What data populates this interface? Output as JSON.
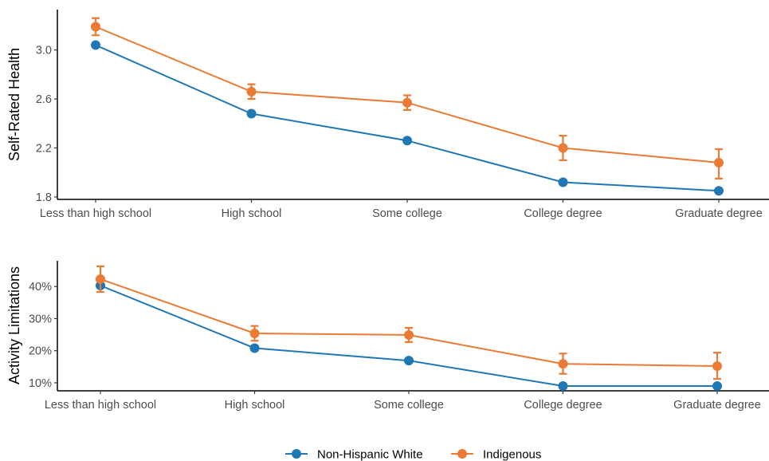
{
  "colors": {
    "non_hispanic_white": "#1f77b4",
    "indigenous": "#ea7a34",
    "axis": "#000000",
    "text": "#4d4d4d"
  },
  "legend": {
    "items": [
      {
        "label": "Non-Hispanic White",
        "color": "#1f77b4"
      },
      {
        "label": "Indigenous",
        "color": "#ea7a34"
      }
    ],
    "placement": "bottom"
  },
  "chart_data": [
    {
      "type": "line",
      "ylabel": "Self-Rated Health",
      "xlabel": "",
      "categories": [
        "Less than high school",
        "High school",
        "Some college",
        "College degree",
        "Graduate degree"
      ],
      "ylim": [
        1.78,
        3.33
      ],
      "yticks": [
        1.8,
        2.2,
        2.6,
        3.0
      ],
      "ytick_labels": [
        "1.8",
        "2.2",
        "2.6",
        "3.0"
      ],
      "grid": false,
      "series": [
        {
          "name": "Non-Hispanic White",
          "color": "#1f77b4",
          "values": [
            3.04,
            2.48,
            2.26,
            1.92,
            1.85
          ]
        },
        {
          "name": "Indigenous",
          "color": "#ea7a34",
          "values": [
            3.19,
            2.66,
            2.57,
            2.2,
            2.08
          ],
          "error_low": [
            3.12,
            2.6,
            2.51,
            2.1,
            1.95
          ],
          "error_high": [
            3.26,
            2.72,
            2.63,
            2.3,
            2.19
          ]
        }
      ]
    },
    {
      "type": "line",
      "ylabel": "Activity Limitations",
      "xlabel": "",
      "categories": [
        "Less than high school",
        "High school",
        "Some college",
        "College degree",
        "Graduate degree"
      ],
      "ylim": [
        7.5,
        48
      ],
      "yticks": [
        10,
        20,
        30,
        40
      ],
      "ytick_labels": [
        "10%",
        "20%",
        "30%",
        "40%"
      ],
      "grid": false,
      "series": [
        {
          "name": "Non-Hispanic White",
          "color": "#1f77b4",
          "values": [
            40.3,
            20.8,
            16.9,
            9.0,
            9.0
          ]
        },
        {
          "name": "Indigenous",
          "color": "#ea7a34",
          "values": [
            42.3,
            25.4,
            24.9,
            15.9,
            15.2
          ],
          "error_low": [
            38.3,
            23.1,
            22.7,
            12.8,
            11.2
          ],
          "error_high": [
            46.3,
            27.7,
            27.1,
            19.1,
            19.4
          ]
        }
      ]
    }
  ]
}
